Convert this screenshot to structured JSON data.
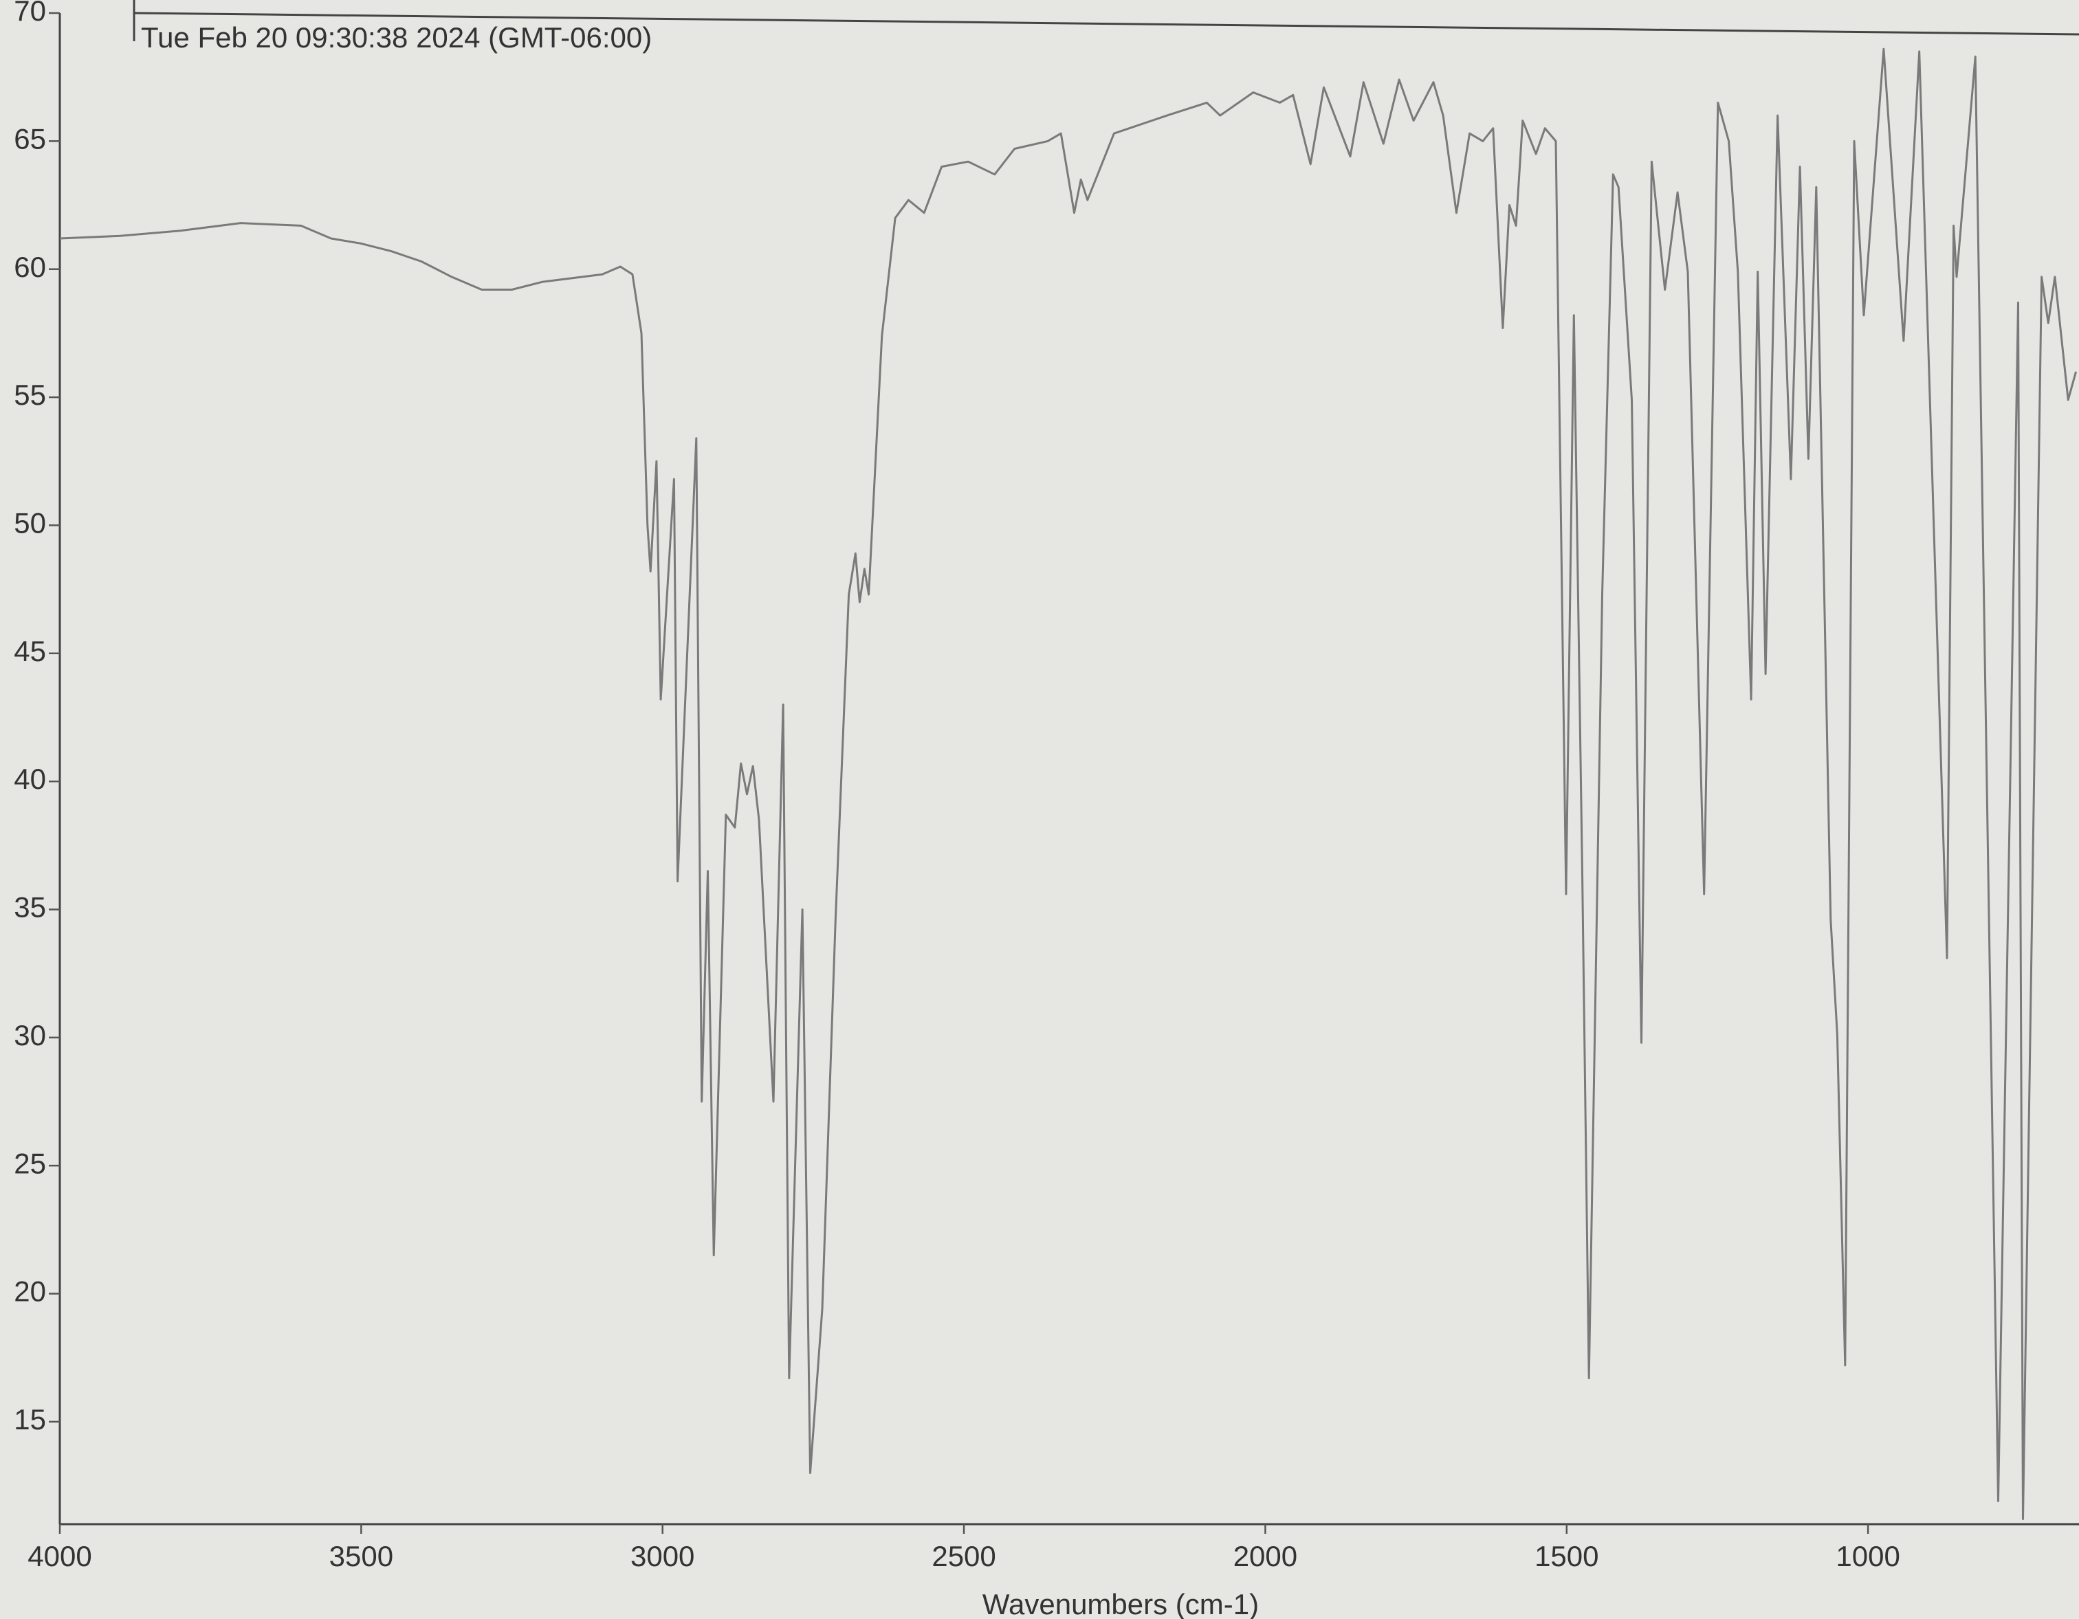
{
  "chart_data": {
    "type": "line",
    "title": "Tue Feb 20 09:30:38 2024 (GMT-06:00)",
    "x_label": "Wavenumbers (cm-1)",
    "color": "#7a7a7a",
    "xlim": [
      4000,
      650
    ],
    "xticks": [
      4000,
      3500,
      3000,
      2500,
      2000,
      1500,
      1000
    ],
    "ylim": [
      11,
      70
    ],
    "yticks": [
      15,
      20,
      25,
      30,
      35,
      40,
      45,
      50,
      55,
      60,
      65,
      70
    ],
    "x": [
      4000,
      3900,
      3800,
      3700,
      3600,
      3550,
      3500,
      3450,
      3400,
      3350,
      3300,
      3250,
      3200,
      3100,
      3070,
      3050,
      3035,
      3025,
      3020,
      3010,
      3003,
      2981,
      2975,
      2944,
      2935,
      2925,
      2915,
      2895,
      2880,
      2870,
      2860,
      2850,
      2840,
      2816,
      2800,
      2790,
      2768,
      2755,
      2735,
      2713,
      2691,
      2680,
      2673,
      2665,
      2658,
      2636,
      2614,
      2592,
      2566,
      2537,
      2493,
      2449,
      2416,
      2361,
      2339,
      2317,
      2306,
      2295,
      2251,
      2163,
      2097,
      2075,
      2020,
      1976,
      1954,
      1925,
      1903,
      1859,
      1837,
      1804,
      1778,
      1754,
      1721,
      1705,
      1683,
      1661,
      1639,
      1622,
      1606,
      1595,
      1584,
      1573,
      1551,
      1536,
      1518,
      1501,
      1488,
      1474,
      1463,
      1441,
      1423,
      1414,
      1392,
      1376,
      1359,
      1337,
      1316,
      1299,
      1272,
      1249,
      1231,
      1216,
      1194,
      1183,
      1170,
      1150,
      1128,
      1113,
      1099,
      1086,
      1062,
      1051,
      1038,
      1023,
      1007,
      974,
      941,
      915,
      869,
      858,
      853,
      822,
      784,
      751,
      743,
      712,
      701,
      690,
      668,
      655
    ],
    "values": [
      61.2,
      61.3,
      61.5,
      61.8,
      61.7,
      61.2,
      61.0,
      60.7,
      60.3,
      59.7,
      59.2,
      59.2,
      59.5,
      59.8,
      60.1,
      59.8,
      57.5,
      50,
      48.2,
      52.5,
      43.2,
      51.8,
      36.1,
      53.4,
      27.5,
      36.5,
      21.5,
      38.7,
      38.2,
      40.7,
      39.5,
      40.6,
      38.5,
      27.5,
      43,
      16.7,
      35,
      13,
      19.4,
      34.6,
      47.3,
      48.9,
      47,
      48.3,
      47.3,
      57.4,
      62,
      62.7,
      62.2,
      64,
      64.2,
      63.7,
      64.7,
      65,
      65.3,
      62.2,
      63.5,
      62.7,
      65.3,
      66,
      66.5,
      66,
      66.9,
      66.5,
      66.8,
      64.1,
      67.1,
      64.4,
      67.3,
      64.9,
      67.4,
      65.8,
      67.3,
      66,
      62.2,
      65.3,
      65,
      65.5,
      57.7,
      62.5,
      61.7,
      65.8,
      64.5,
      65.5,
      65,
      35.6,
      58.2,
      36.2,
      16.7,
      47.3,
      63.7,
      63.2,
      54.9,
      29.8,
      64.2,
      59.2,
      63,
      59.9,
      35.6,
      66.5,
      65,
      59.9,
      43.2,
      59.9,
      44.2,
      66,
      51.8,
      64,
      52.6,
      63.2,
      34.6,
      30.1,
      17.2,
      65,
      58.2,
      68.6,
      57.2,
      68.5,
      33.1,
      61.7,
      59.7,
      68.3,
      11.9,
      58.7,
      11.2,
      59.7,
      57.9,
      59.7,
      54.9,
      56
    ]
  }
}
